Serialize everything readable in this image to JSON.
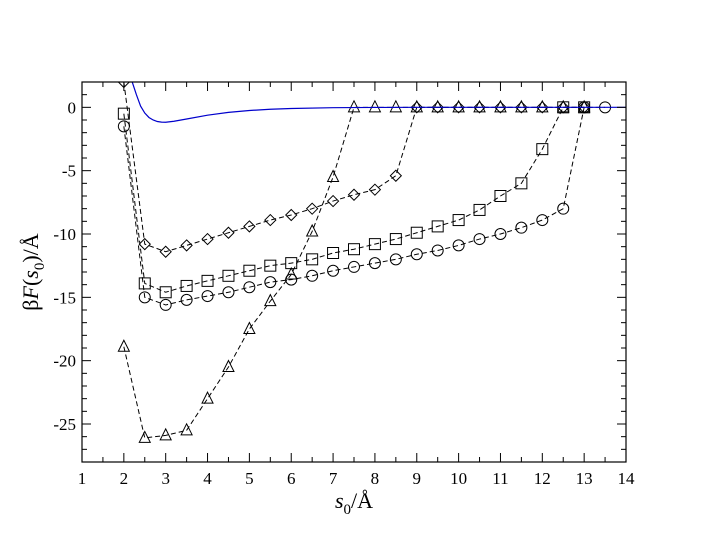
{
  "chart_data": {
    "type": "line",
    "xlabel": "s0/Å",
    "ylabel": "βF(s0)/Å",
    "xlim": [
      1,
      14
    ],
    "ylim": [
      -28,
      2
    ],
    "xticks": [
      1,
      2,
      3,
      4,
      5,
      6,
      7,
      8,
      9,
      10,
      11,
      12,
      13,
      14
    ],
    "yticks": [
      0,
      -5,
      -10,
      -15,
      -20,
      -25
    ],
    "grid": false,
    "series": [
      {
        "marker": "circle",
        "line": "dashed",
        "x": [
          2,
          2.5,
          3,
          3.5,
          4,
          4.5,
          5,
          5.5,
          6,
          6.5,
          7,
          7.5,
          8,
          8.5,
          9,
          9.5,
          10,
          10.5,
          11,
          11.5,
          12,
          12.5,
          13,
          13.5
        ],
        "y": [
          -1.5,
          -15.0,
          -15.6,
          -15.2,
          -14.9,
          -14.6,
          -14.2,
          -13.8,
          -13.6,
          -13.3,
          -12.9,
          -12.6,
          -12.3,
          -12.0,
          -11.6,
          -11.3,
          -10.9,
          -10.4,
          -10.0,
          -9.5,
          -8.9,
          -8.0,
          0,
          0
        ]
      },
      {
        "marker": "square",
        "line": "dashed",
        "x": [
          2,
          2.5,
          3,
          3.5,
          4,
          4.5,
          5,
          5.5,
          6,
          6.5,
          7,
          7.5,
          8,
          8.5,
          9,
          9.5,
          10,
          10.5,
          11,
          11.5,
          12,
          12.5,
          13
        ],
        "y": [
          -0.5,
          -13.9,
          -14.6,
          -14.1,
          -13.7,
          -13.3,
          -12.9,
          -12.5,
          -12.3,
          -12.0,
          -11.5,
          -11.2,
          -10.8,
          -10.4,
          -9.9,
          -9.4,
          -8.9,
          -8.1,
          -7.0,
          -6.0,
          -3.3,
          0,
          0
        ]
      },
      {
        "marker": "diamond",
        "line": "dashed",
        "x": [
          2,
          2.5,
          3,
          3.5,
          4,
          4.5,
          5,
          5.5,
          6,
          6.5,
          7,
          7.5,
          8,
          8.5,
          9,
          9.5,
          10,
          10.5,
          11,
          11.5,
          12,
          12.5,
          13
        ],
        "y": [
          2,
          -10.8,
          -11.4,
          -10.9,
          -10.4,
          -9.9,
          -9.4,
          -8.9,
          -8.5,
          -8.0,
          -7.4,
          -6.9,
          -6.5,
          -5.4,
          0,
          0,
          0,
          0,
          0,
          0,
          0,
          0,
          0
        ]
      },
      {
        "marker": "triangle",
        "line": "dashed",
        "x": [
          2,
          2.5,
          3,
          3.5,
          4,
          4.5,
          5,
          5.5,
          6,
          6.5,
          7,
          7.5,
          8,
          8.5,
          9,
          9.5,
          10,
          10.5,
          11,
          11.5,
          12,
          12.5,
          13
        ],
        "y": [
          -18.9,
          -26.1,
          -25.9,
          -25.5,
          -23.0,
          -20.5,
          -17.5,
          -15.3,
          -13.2,
          -9.8,
          -5.5,
          0,
          0,
          0,
          0,
          0,
          0,
          0,
          0,
          0,
          0,
          0,
          0
        ]
      },
      {
        "marker": "none",
        "line": "solid",
        "color": "#0000cc",
        "x": [
          2.2,
          2.3,
          2.4,
          2.5,
          2.6,
          2.7,
          2.8,
          2.9,
          3.0,
          3.2,
          3.5,
          4.0,
          4.5,
          5.0,
          5.5,
          6.0,
          7.0,
          8.0,
          9.0,
          10.0,
          12.0,
          14.0
        ],
        "y": [
          2.0,
          1.0,
          0.1,
          -0.45,
          -0.8,
          -1.0,
          -1.12,
          -1.17,
          -1.18,
          -1.1,
          -0.92,
          -0.62,
          -0.4,
          -0.25,
          -0.15,
          -0.09,
          -0.03,
          -0.01,
          0,
          0,
          0,
          0
        ]
      }
    ]
  }
}
